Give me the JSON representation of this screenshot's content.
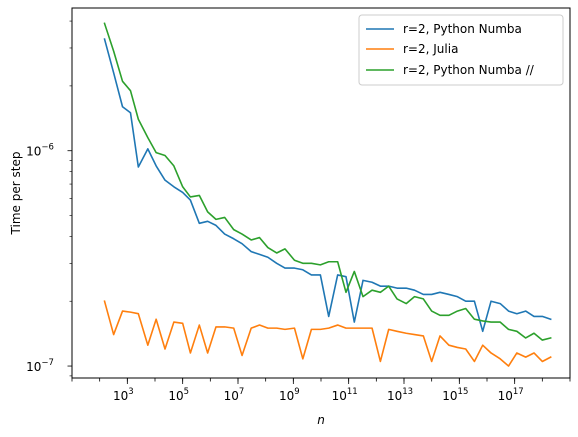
{
  "chart_data": {
    "type": "line",
    "xscale": "log",
    "yscale": "log",
    "xlabel": "n",
    "ylabel": "Time per step",
    "xlim": [
      10,
      1e+19
    ],
    "ylim": [
      8.8e-08,
      4.6e-06
    ],
    "legend_position": "top-right",
    "grid": false,
    "x_tick_labels": [
      {
        "base": "10",
        "exp": "3",
        "value": 1000.0
      },
      {
        "base": "10",
        "exp": "5",
        "value": 100000.0
      },
      {
        "base": "10",
        "exp": "7",
        "value": 10000000.0
      },
      {
        "base": "10",
        "exp": "9",
        "value": 1000000000.0
      },
      {
        "base": "10",
        "exp": "11",
        "value": 100000000000.0
      },
      {
        "base": "10",
        "exp": "13",
        "value": 10000000000000.0
      },
      {
        "base": "10",
        "exp": "15",
        "value": 1000000000000000.0
      },
      {
        "base": "10",
        "exp": "17",
        "value": 1e+17
      }
    ],
    "y_tick_labels": [
      {
        "base": "10",
        "exp": "−6",
        "value": 1e-06
      },
      {
        "base": "10",
        "exp": "−7",
        "value": 1e-07
      }
    ],
    "series": [
      {
        "name": "r=2, Python Numba",
        "color": "#1f77b4",
        "x": [
          150.0,
          320.0,
          670.0,
          1300.0,
          2500.0,
          5500.0,
          11000.0,
          23000.0,
          48000.0,
          100000.0,
          190000.0,
          400000.0,
          800000.0,
          1600000.0,
          3300000.0,
          7000000.0,
          14000000.0,
          30000000.0,
          60000000.0,
          120000000.0,
          250000000.0,
          500000000.0,
          1100000000.0,
          2200000000.0,
          4500000000.0,
          9500000000.0,
          19000000000.0,
          40000000000.0,
          80000000000.0,
          160000000000.0,
          330000000000.0,
          700000000000.0,
          1400000000000.0,
          2800000000000.0,
          5600000000000.0,
          12000000000000.0,
          24000000000000.0,
          50000000000000.0,
          100000000000000.0,
          200000000000000.0,
          420000000000000.0,
          850000000000000.0,
          1700000000000000.0,
          3500000000000000.0,
          7000000000000000.0,
          1.4e+16,
          3e+16,
          6e+16,
          1.2e+17,
          2.5e+17,
          5e+17,
          1e+18,
          2e+18
        ],
        "y": [
          3.3e-06,
          2.3e-06,
          1.6e-06,
          1.5e-06,
          8.4e-07,
          1.02e-06,
          8.5e-07,
          7.3e-07,
          6.8e-07,
          6.4e-07,
          5.9e-07,
          4.6e-07,
          4.7e-07,
          4.5e-07,
          4.1e-07,
          3.9e-07,
          3.7e-07,
          3.4e-07,
          3.3e-07,
          3.2e-07,
          3e-07,
          2.85e-07,
          2.85e-07,
          2.8e-07,
          2.65e-07,
          2.65e-07,
          1.7e-07,
          2.65e-07,
          2.6e-07,
          1.6e-07,
          2.5e-07,
          2.45e-07,
          2.35e-07,
          2.35e-07,
          2.3e-07,
          2.3e-07,
          2.25e-07,
          2.15e-07,
          2.15e-07,
          2.2e-07,
          2.15e-07,
          2.1e-07,
          2e-07,
          2e-07,
          1.45e-07,
          2e-07,
          1.95e-07,
          1.8e-07,
          1.75e-07,
          1.8e-07,
          1.7e-07,
          1.7e-07,
          1.65e-07
        ]
      },
      {
        "name": "r=2, Julia",
        "color": "#ff7f0e",
        "x": [
          150.0,
          320.0,
          670.0,
          1300.0,
          2500.0,
          5500.0,
          11000.0,
          23000.0,
          48000.0,
          100000.0,
          190000.0,
          400000.0,
          800000.0,
          1600000.0,
          3300000.0,
          7000000.0,
          14000000.0,
          30000000.0,
          60000000.0,
          120000000.0,
          250000000.0,
          500000000.0,
          1100000000.0,
          2200000000.0,
          4500000000.0,
          9500000000.0,
          19000000000.0,
          40000000000.0,
          80000000000.0,
          160000000000.0,
          330000000000.0,
          700000000000.0,
          1400000000000.0,
          2800000000000.0,
          5600000000000.0,
          12000000000000.0,
          24000000000000.0,
          50000000000000.0,
          100000000000000.0,
          200000000000000.0,
          420000000000000.0,
          850000000000000.0,
          1700000000000000.0,
          3500000000000000.0,
          7000000000000000.0,
          1.4e+16,
          3e+16,
          6e+16,
          1.2e+17,
          2.5e+17,
          5e+17,
          1e+18,
          2e+18
        ],
        "y": [
          2e-07,
          1.4e-07,
          1.8e-07,
          1.78e-07,
          1.75e-07,
          1.25e-07,
          1.65e-07,
          1.2e-07,
          1.6e-07,
          1.58e-07,
          1.15e-07,
          1.55e-07,
          1.15e-07,
          1.52e-07,
          1.52e-07,
          1.5e-07,
          1.12e-07,
          1.5e-07,
          1.55e-07,
          1.5e-07,
          1.5e-07,
          1.48e-07,
          1.5e-07,
          1.08e-07,
          1.48e-07,
          1.48e-07,
          1.5e-07,
          1.55e-07,
          1.5e-07,
          1.5e-07,
          1.5e-07,
          1.5e-07,
          1.05e-07,
          1.48e-07,
          1.45e-07,
          1.42e-07,
          1.4e-07,
          1.38e-07,
          1.05e-07,
          1.38e-07,
          1.25e-07,
          1.22e-07,
          1.2e-07,
          1.05e-07,
          1.25e-07,
          1.15e-07,
          1.08e-07,
          1e-07,
          1.15e-07,
          1.1e-07,
          1.15e-07,
          1.05e-07,
          1.1e-07
        ]
      },
      {
        "name": "r=2, Python Numba //",
        "color": "#2ca02c",
        "x": [
          150.0,
          320.0,
          670.0,
          1300.0,
          2500.0,
          5500.0,
          11000.0,
          23000.0,
          48000.0,
          100000.0,
          190000.0,
          400000.0,
          800000.0,
          1600000.0,
          3300000.0,
          7000000.0,
          14000000.0,
          30000000.0,
          60000000.0,
          120000000.0,
          250000000.0,
          500000000.0,
          1100000000.0,
          2200000000.0,
          4500000000.0,
          9500000000.0,
          19000000000.0,
          40000000000.0,
          80000000000.0,
          160000000000.0,
          330000000000.0,
          700000000000.0,
          1400000000000.0,
          2800000000000.0,
          5600000000000.0,
          12000000000000.0,
          24000000000000.0,
          50000000000000.0,
          100000000000000.0,
          200000000000000.0,
          420000000000000.0,
          850000000000000.0,
          1700000000000000.0,
          3500000000000000.0,
          7000000000000000.0,
          1.4e+16,
          3e+16,
          6e+16,
          1.2e+17,
          2.5e+17,
          5e+17,
          1e+18,
          2e+18
        ],
        "y": [
          3.9e-06,
          2.9e-06,
          2.1e-06,
          1.9e-06,
          1.4e-06,
          1.15e-06,
          9.8e-07,
          9.5e-07,
          8.5e-07,
          6.8e-07,
          6.1e-07,
          6.2e-07,
          5.2e-07,
          4.8e-07,
          4.9e-07,
          4.3e-07,
          4.1e-07,
          3.85e-07,
          3.95e-07,
          3.55e-07,
          3.35e-07,
          3.5e-07,
          3.1e-07,
          3e-07,
          3e-07,
          2.95e-07,
          3.05e-07,
          3.05e-07,
          2.2e-07,
          2.75e-07,
          2.1e-07,
          2.25e-07,
          2.2e-07,
          2.35e-07,
          2.05e-07,
          1.95e-07,
          2.1e-07,
          2.05e-07,
          1.8e-07,
          1.72e-07,
          1.72e-07,
          1.8e-07,
          1.85e-07,
          1.65e-07,
          1.62e-07,
          1.6e-07,
          1.6e-07,
          1.48e-07,
          1.45e-07,
          1.35e-07,
          1.42e-07,
          1.32e-07,
          1.35e-07
        ]
      }
    ]
  }
}
